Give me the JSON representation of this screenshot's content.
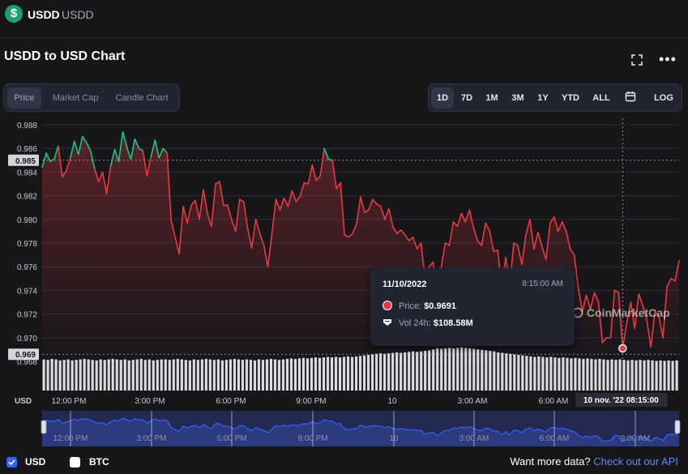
{
  "header": {
    "name": "USDD",
    "symbol": "USDD",
    "logo_glyph": "$"
  },
  "chart_title": "USDD to USD Chart",
  "toolbar": {
    "fullscreen_icon": "expand-icon",
    "more_icon": "more-icon",
    "views": [
      "Price",
      "Market Cap",
      "Candle Chart"
    ],
    "active_view": "Price",
    "ranges": [
      "1D",
      "7D",
      "1M",
      "3M",
      "1Y",
      "YTD",
      "ALL"
    ],
    "active_range": "1D",
    "calendar_icon": "calendar-icon",
    "log_label": "LOG"
  },
  "axis": {
    "y_ticks": [
      "0.988",
      "0.986",
      "0.984",
      "0.982",
      "0.980",
      "0.978",
      "0.976",
      "0.974",
      "0.972",
      "0.970",
      "0.968"
    ],
    "current_price_tag": "0.985",
    "low_price_tag": "0.969",
    "x_ticks": [
      "12:00 PM",
      "3:00 PM",
      "6:00 PM",
      "9:00 PM",
      "10",
      "3:00 AM",
      "6:00 AM"
    ],
    "x_crosshair_label": "10 nov. '22   08:15:00",
    "currency_label": "USD"
  },
  "navigator": {
    "x_ticks": [
      "12:00 PM",
      "3:00 PM",
      "6:00 PM",
      "9:00 PM",
      "10",
      "3:00 AM",
      "6:00 AM",
      "9:00 AM"
    ]
  },
  "tooltip": {
    "date": "11/10/2022",
    "time": "8:15:00 AM",
    "price_label": "Price:",
    "price_value": "$0.9691",
    "volume_label": "Vol 24h:",
    "volume_value": "$108.58M"
  },
  "watermark": "CoinMarketCap",
  "footer": {
    "usd_label": "USD",
    "usd_checked": true,
    "btc_label": "BTC",
    "btc_checked": false,
    "prompt": "Want more data?",
    "link": "Check out our API"
  },
  "colors": {
    "up": "#16c784",
    "down": "#ea3943",
    "navigator": "#3861fb"
  },
  "chart_data": {
    "type": "line",
    "x_range": [
      "11:00 AM",
      "9:30 AM"
    ],
    "ylim": [
      0.968,
      0.988
    ],
    "baseline": 0.985,
    "crosshair": {
      "time": "8:15:00 AM",
      "price": 0.9691
    },
    "series": [
      {
        "values": [
          0.9844,
          0.9856,
          0.9849,
          0.9851,
          0.9862,
          0.9836,
          0.9841,
          0.9852,
          0.9866,
          0.9855,
          0.987,
          0.9865,
          0.9858,
          0.9843,
          0.9832,
          0.984,
          0.9822,
          0.9845,
          0.9859,
          0.9849,
          0.9874,
          0.9861,
          0.9851,
          0.9868,
          0.986,
          0.9858,
          0.9837,
          0.9853,
          0.9867,
          0.9852,
          0.986,
          0.9856,
          0.9799,
          0.9785,
          0.9771,
          0.9811,
          0.9797,
          0.9812,
          0.9816,
          0.98,
          0.9825,
          0.9805,
          0.9794,
          0.983,
          0.9832,
          0.9812,
          0.9812,
          0.98,
          0.979,
          0.9817,
          0.9815,
          0.9792,
          0.9776,
          0.98,
          0.9788,
          0.9778,
          0.976,
          0.9788,
          0.9817,
          0.9808,
          0.9818,
          0.9811,
          0.9824,
          0.9815,
          0.982,
          0.9831,
          0.983,
          0.9846,
          0.9833,
          0.9837,
          0.986,
          0.9851,
          0.985,
          0.9826,
          0.9831,
          0.9787,
          0.9785,
          0.9788,
          0.9796,
          0.9819,
          0.9806,
          0.9808,
          0.9817,
          0.9813,
          0.9811,
          0.98,
          0.9809,
          0.9794,
          0.9788,
          0.9791,
          0.9787,
          0.9782,
          0.9785,
          0.9775,
          0.978,
          0.9748,
          0.976,
          0.9764,
          0.9737,
          0.976,
          0.978,
          0.9778,
          0.9798,
          0.9794,
          0.9805,
          0.9798,
          0.9808,
          0.9793,
          0.9782,
          0.9778,
          0.9797,
          0.979,
          0.9773,
          0.9774,
          0.9744,
          0.9768,
          0.9745,
          0.978,
          0.9778,
          0.9762,
          0.9787,
          0.98,
          0.9775,
          0.9789,
          0.9777,
          0.9766,
          0.9797,
          0.9802,
          0.979,
          0.9798,
          0.979,
          0.9775,
          0.977,
          0.9742,
          0.9722,
          0.9736,
          0.9724,
          0.9738,
          0.973,
          0.9696,
          0.97,
          0.97,
          0.974,
          0.9738,
          0.9691,
          0.9712,
          0.973,
          0.9708,
          0.9737,
          0.9727,
          0.9715,
          0.9692,
          0.9722,
          0.9718,
          0.97,
          0.9743,
          0.975,
          0.9748,
          0.9765
        ]
      }
    ],
    "volume": [
      0.62,
      0.61,
      0.63,
      0.62,
      0.6,
      0.61,
      0.62,
      0.6,
      0.61,
      0.62,
      0.63,
      0.62,
      0.61,
      0.6,
      0.62,
      0.61,
      0.62,
      0.63,
      0.62,
      0.61,
      0.62,
      0.6,
      0.61,
      0.62,
      0.63,
      0.61,
      0.62,
      0.6,
      0.61,
      0.62,
      0.62,
      0.61,
      0.62,
      0.63,
      0.62,
      0.61,
      0.6,
      0.62,
      0.61,
      0.62,
      0.63,
      0.62,
      0.61,
      0.62,
      0.6,
      0.61,
      0.62,
      0.63,
      0.62,
      0.61,
      0.62,
      0.61,
      0.6,
      0.62,
      0.61,
      0.62,
      0.63,
      0.62,
      0.61,
      0.62,
      0.63,
      0.64,
      0.63,
      0.64,
      0.65,
      0.64,
      0.65,
      0.66,
      0.65,
      0.66,
      0.67,
      0.66,
      0.67,
      0.66,
      0.67,
      0.68,
      0.67,
      0.68,
      0.69,
      0.7,
      0.71,
      0.72,
      0.73,
      0.74,
      0.73,
      0.74,
      0.75,
      0.76,
      0.75,
      0.76,
      0.77,
      0.78,
      0.77,
      0.78,
      0.79,
      0.8,
      0.82,
      0.84,
      0.83,
      0.84,
      0.85,
      0.84,
      0.85,
      0.86,
      0.85,
      0.84,
      0.83,
      0.82,
      0.81,
      0.8,
      0.79,
      0.78,
      0.76,
      0.75,
      0.74,
      0.73,
      0.72,
      0.71,
      0.7,
      0.69,
      0.68,
      0.67,
      0.68,
      0.67,
      0.66,
      0.67,
      0.66,
      0.65,
      0.66,
      0.65,
      0.64,
      0.65,
      0.64,
      0.63,
      0.64,
      0.63,
      0.62,
      0.63,
      0.62,
      0.61,
      0.62,
      0.61,
      0.62,
      0.61,
      0.6,
      0.61,
      0.6,
      0.61,
      0.6,
      0.61,
      0.6,
      0.59,
      0.6,
      0.59,
      0.6,
      0.59,
      0.6
    ]
  }
}
